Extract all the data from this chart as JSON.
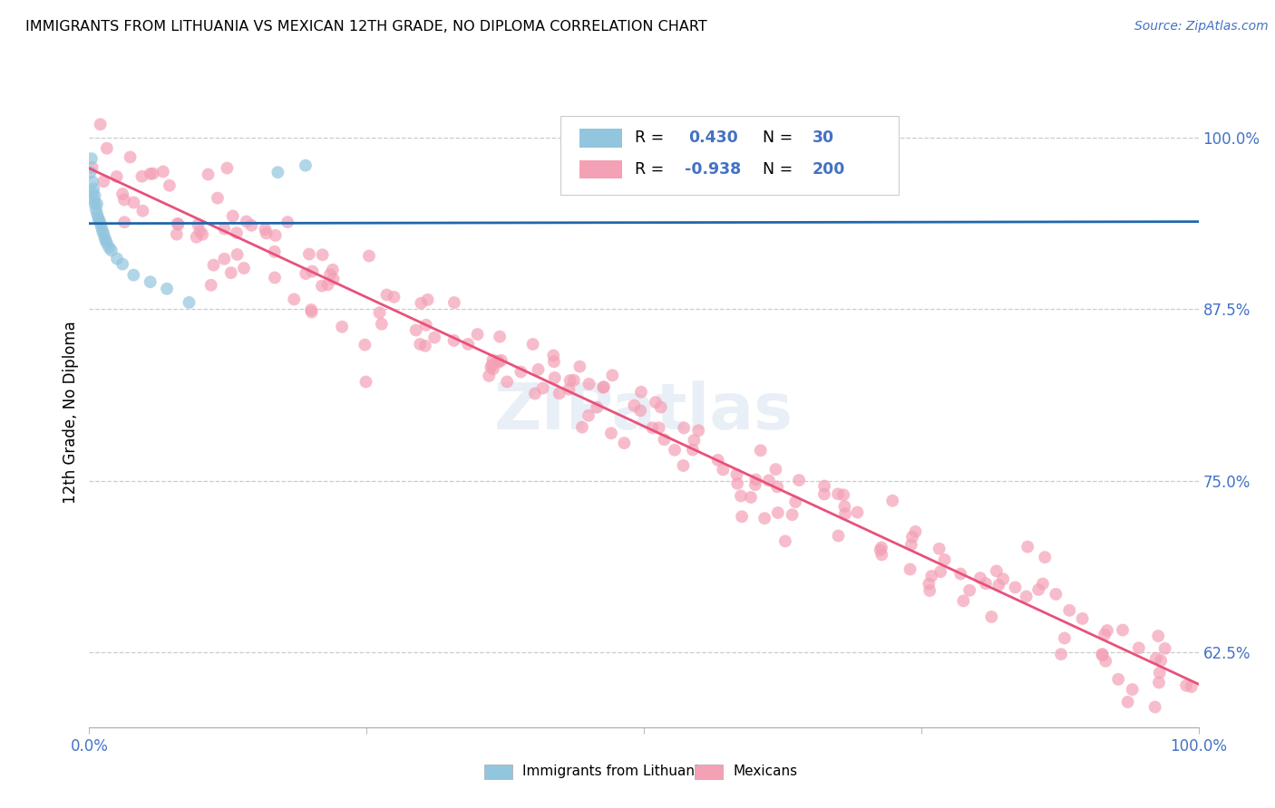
{
  "title": "IMMIGRANTS FROM LITHUANIA VS MEXICAN 12TH GRADE, NO DIPLOMA CORRELATION CHART",
  "source": "Source: ZipAtlas.com",
  "ylabel": "12th Grade, No Diploma",
  "xlim": [
    0.0,
    1.0
  ],
  "ylim": [
    0.57,
    1.03
  ],
  "x_tick_positions": [
    0.0,
    0.25,
    0.5,
    0.75,
    1.0
  ],
  "x_tick_labels": [
    "0.0%",
    "",
    "",
    "",
    "100.0%"
  ],
  "y_tick_labels_right": [
    "100.0%",
    "87.5%",
    "75.0%",
    "62.5%"
  ],
  "y_tick_values_right": [
    1.0,
    0.875,
    0.75,
    0.625
  ],
  "legend_labels": [
    "Immigrants from Lithuania",
    "Mexicans"
  ],
  "blue_color": "#92c5de",
  "pink_color": "#f4a0b5",
  "blue_line_color": "#2166ac",
  "pink_line_color": "#e8517a",
  "R_blue": 0.43,
  "N_blue": 30,
  "R_pink": -0.938,
  "N_pink": 200,
  "title_fontsize": 11.5,
  "source_fontsize": 10,
  "axis_label_color": "#4472c4",
  "legend_value_color": "#4472c4",
  "watermark_text": "ZIPatlas",
  "background_color": "#ffffff",
  "grid_color": "#cccccc",
  "scatter_size": 100,
  "scatter_alpha": 0.7
}
